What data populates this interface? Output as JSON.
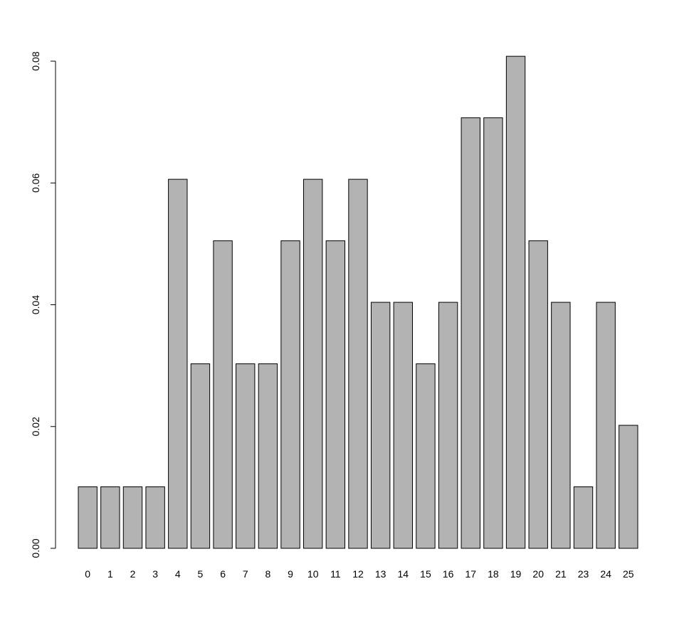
{
  "chart_data": {
    "type": "bar",
    "categories": [
      "0",
      "1",
      "2",
      "3",
      "4",
      "5",
      "6",
      "7",
      "8",
      "9",
      "10",
      "11",
      "12",
      "13",
      "14",
      "15",
      "16",
      "17",
      "18",
      "19",
      "20",
      "21",
      "23",
      "24",
      "25"
    ],
    "values": [
      0.0101,
      0.0101,
      0.0101,
      0.0101,
      0.0606,
      0.0303,
      0.0505,
      0.0303,
      0.0303,
      0.0505,
      0.0606,
      0.0505,
      0.0606,
      0.0404,
      0.0404,
      0.0303,
      0.0404,
      0.0707,
      0.0707,
      0.0808,
      0.0505,
      0.0404,
      0.0101,
      0.0404,
      0.0202
    ],
    "color": "#b3b3b3",
    "ylim": [
      0,
      0.08
    ],
    "yticks": [
      {
        "value": 0,
        "label": "0.00"
      },
      {
        "value": 0.02,
        "label": "0.02"
      },
      {
        "value": 0.04,
        "label": "0.04"
      },
      {
        "value": 0.06,
        "label": "0.06"
      },
      {
        "value": 0.08,
        "label": "0.08"
      }
    ]
  }
}
